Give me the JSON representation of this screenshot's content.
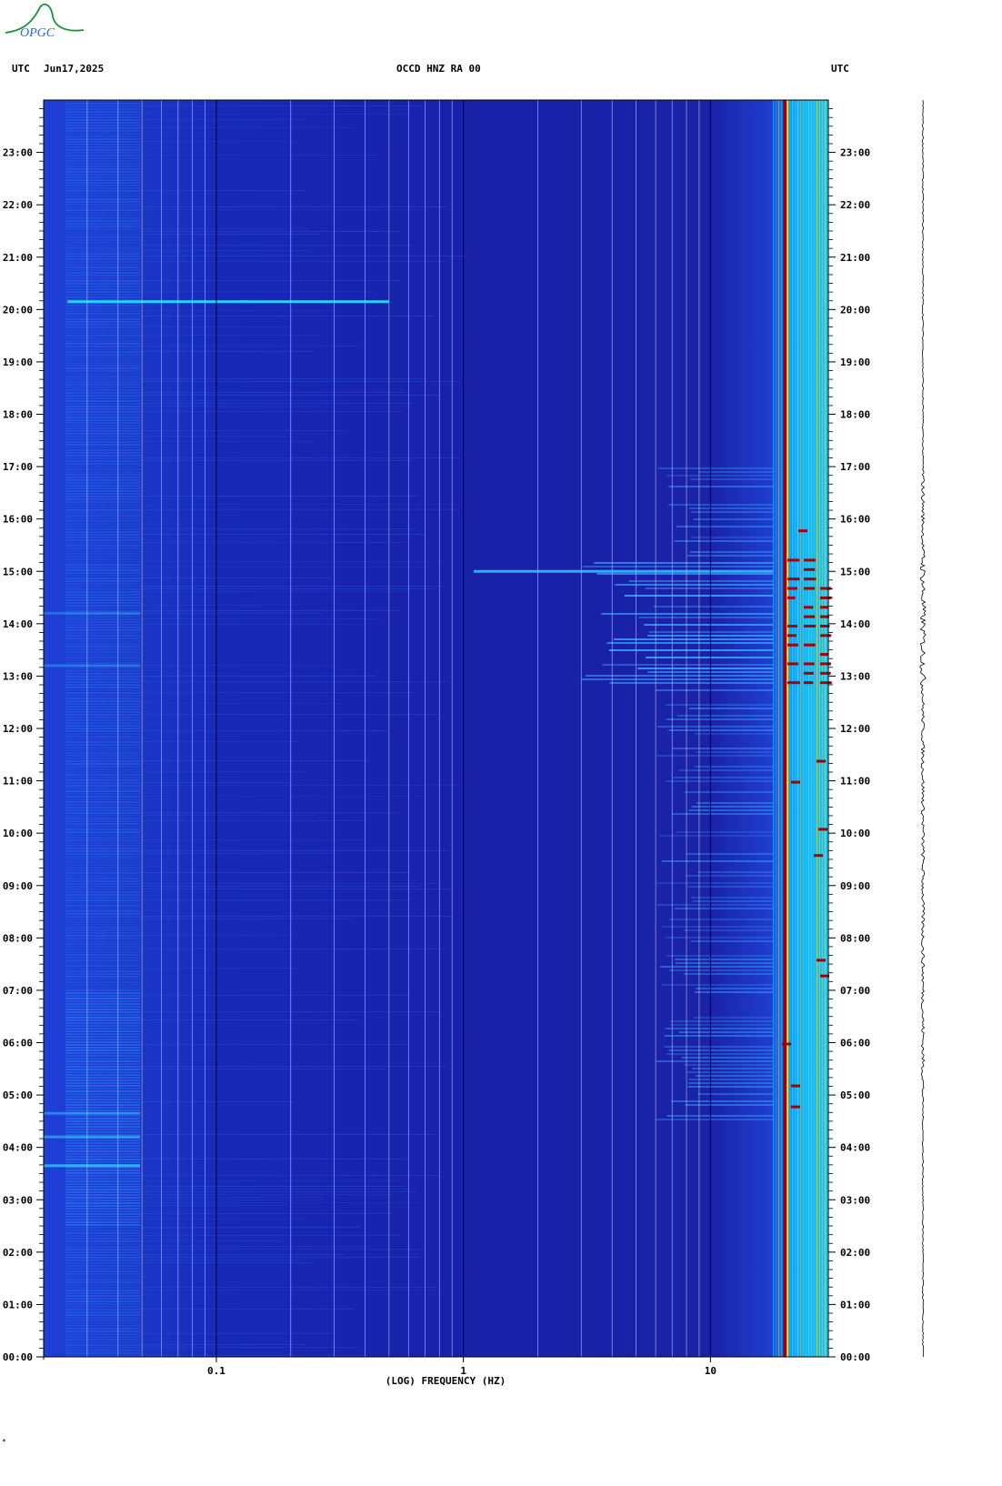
{
  "logo": {
    "text": "OPGC"
  },
  "header": {
    "left_tz": "UTC",
    "date": "Jun17,2025",
    "station": "OCCD HNZ RA 00",
    "right_tz": "UTC"
  },
  "colors": {
    "background_low": "#1a1fa8",
    "mid": "#1f5cf0",
    "cyan": "#14d8ff",
    "yellow": "#ffee33",
    "red": "#a00000",
    "grid": "#cccccc"
  },
  "chart_data": {
    "type": "heatmap",
    "title": "OCCD HNZ RA 00",
    "xlabel": "(LOG) FREQUENCY (HZ)",
    "x_scale": "log",
    "xlim": [
      0.02,
      30
    ],
    "x_ticks": [
      0.1,
      1,
      10
    ],
    "x_tick_labels": [
      "0.1",
      "1",
      "10"
    ],
    "ylim_hours": [
      0,
      24
    ],
    "y_tick_labels": [
      "00:00",
      "01:00",
      "02:00",
      "03:00",
      "04:00",
      "05:00",
      "06:00",
      "07:00",
      "08:00",
      "09:00",
      "10:00",
      "11:00",
      "12:00",
      "13:00",
      "14:00",
      "15:00",
      "16:00",
      "17:00",
      "18:00",
      "19:00",
      "20:00",
      "21:00",
      "22:00",
      "23:00"
    ],
    "notable_features": [
      {
        "label": "continuous line",
        "freq_hz": 20,
        "hours": [
          0,
          24
        ]
      },
      {
        "label": "strong broadband",
        "freq_hz_range": [
          3,
          30
        ],
        "hours": [
          12.8,
          15.2
        ]
      },
      {
        "label": "long-period line",
        "freq_hz_range": [
          0.025,
          0.5
        ],
        "hour": 20.15
      }
    ],
    "grid": true
  },
  "footer": {
    "mark": "*"
  }
}
